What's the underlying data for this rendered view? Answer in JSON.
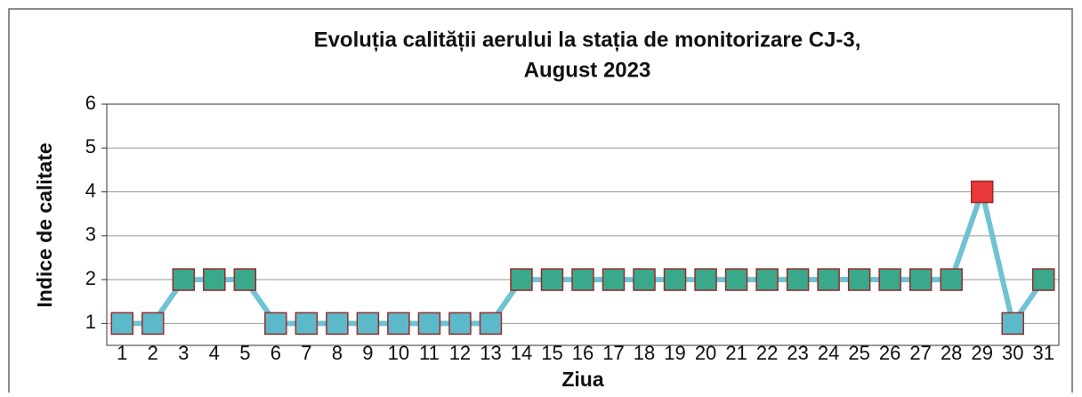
{
  "chart_data": {
    "type": "line",
    "title": [
      "Evoluția calității aerului la stația de monitorizare CJ-3,",
      "August  2023"
    ],
    "x_label": "Ziua",
    "y_label": "Indice de calitate",
    "categories": [
      "1",
      "2",
      "3",
      "4",
      "5",
      "6",
      "7",
      "8",
      "9",
      "10",
      "11",
      "12",
      "13",
      "14",
      "15",
      "16",
      "17",
      "18",
      "19",
      "20",
      "21",
      "22",
      "23",
      "24",
      "25",
      "26",
      "27",
      "28",
      "29",
      "30",
      "31"
    ],
    "series": [
      {
        "name": "Indice de calitate",
        "color": "#6fc3d3",
        "values": [
          1,
          1,
          2,
          2,
          2,
          1,
          1,
          1,
          1,
          1,
          1,
          1,
          1,
          2,
          2,
          2,
          2,
          2,
          2,
          2,
          2,
          2,
          2,
          2,
          2,
          2,
          2,
          2,
          4,
          1,
          2
        ],
        "marker_colors": [
          "#5cb9c9",
          "#5cb9c9",
          "#3aa88a",
          "#3aa88a",
          "#3aa88a",
          "#5cb9c9",
          "#5cb9c9",
          "#5cb9c9",
          "#5cb9c9",
          "#5cb9c9",
          "#5cb9c9",
          "#5cb9c9",
          "#5cb9c9",
          "#3aa88a",
          "#3aa88a",
          "#3aa88a",
          "#3aa88a",
          "#3aa88a",
          "#3aa88a",
          "#3aa88a",
          "#3aa88a",
          "#3aa88a",
          "#3aa88a",
          "#3aa88a",
          "#3aa88a",
          "#3aa88a",
          "#3aa88a",
          "#3aa88a",
          "#e8383a",
          "#5cb9c9",
          "#3aa88a"
        ]
      }
    ],
    "ylim": [
      0.5,
      6
    ],
    "yticks": [
      1,
      2,
      3,
      4,
      5,
      6
    ],
    "grid": true
  }
}
